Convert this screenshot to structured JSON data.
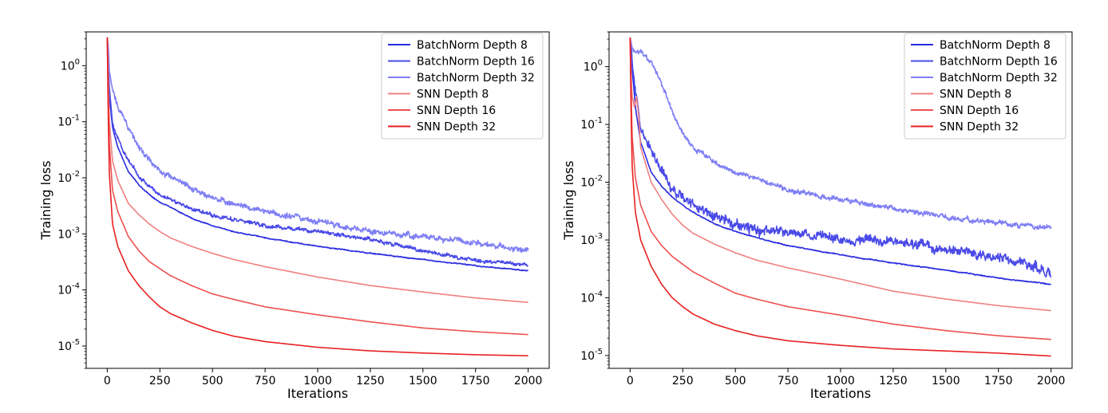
{
  "chart_data": [
    {
      "type": "line",
      "title": "",
      "xlabel": "Iterations",
      "ylabel": "Training loss",
      "yscale": "log",
      "xlim": [
        -100,
        2100
      ],
      "ylim": [
        4e-06,
        4
      ],
      "xticks": [
        0,
        250,
        500,
        750,
        1000,
        1250,
        1500,
        1750,
        2000
      ],
      "xtick_labels": [
        "0",
        "250",
        "500",
        "750",
        "1000",
        "1250",
        "1500",
        "1750",
        "2000"
      ],
      "yticks": [
        1e-05,
        0.0001,
        0.001,
        0.01,
        0.1,
        1
      ],
      "ytick_labels": [
        {
          "base": "10",
          "exp": "-5"
        },
        {
          "base": "10",
          "exp": "-4"
        },
        {
          "base": "10",
          "exp": "-3"
        },
        {
          "base": "10",
          "exp": "-2"
        },
        {
          "base": "10",
          "exp": "-1"
        },
        {
          "base": "10",
          "exp": "0"
        }
      ],
      "grid": false,
      "legend_position": "top-right",
      "series": [
        {
          "name": "BatchNorm Depth 8",
          "color": "#2a2ae0",
          "noise": 0.02,
          "x": [
            0,
            5,
            10,
            25,
            50,
            100,
            150,
            200,
            250,
            300,
            400,
            500,
            600,
            750,
            1000,
            1250,
            1500,
            1750,
            2000
          ],
          "y": [
            3.2,
            1.0,
            0.28,
            0.08,
            0.035,
            0.013,
            0.0075,
            0.005,
            0.0037,
            0.003,
            0.0019,
            0.0014,
            0.0011,
            0.00085,
            0.0006,
            0.00045,
            0.00035,
            0.00027,
            0.00022
          ]
        },
        {
          "name": "BatchNorm Depth 16",
          "color": "#4a4ae8",
          "noise": 0.08,
          "x": [
            0,
            5,
            10,
            25,
            50,
            100,
            150,
            200,
            250,
            300,
            400,
            500,
            600,
            750,
            1000,
            1250,
            1500,
            1750,
            2000
          ],
          "y": [
            3.2,
            1.2,
            0.4,
            0.1,
            0.05,
            0.02,
            0.011,
            0.007,
            0.005,
            0.0042,
            0.0028,
            0.0022,
            0.0018,
            0.0014,
            0.0011,
            0.0008,
            0.0005,
            0.00033,
            0.00028
          ]
        },
        {
          "name": "BatchNorm Depth 32",
          "color": "#7f7ff5",
          "noise": 0.12,
          "x": [
            0,
            5,
            10,
            25,
            50,
            100,
            150,
            200,
            250,
            300,
            400,
            500,
            600,
            750,
            1000,
            1250,
            1500,
            1750,
            2000
          ],
          "y": [
            3.2,
            2.2,
            0.8,
            0.35,
            0.2,
            0.08,
            0.035,
            0.02,
            0.013,
            0.01,
            0.0065,
            0.0045,
            0.0035,
            0.0025,
            0.0017,
            0.0011,
            0.0009,
            0.0007,
            0.0005
          ]
        },
        {
          "name": "SNN Depth 8",
          "color": "#f08080",
          "noise": 0,
          "x": [
            0,
            5,
            10,
            25,
            50,
            100,
            150,
            200,
            250,
            300,
            400,
            500,
            600,
            750,
            1000,
            1250,
            1500,
            1750,
            2000
          ],
          "y": [
            3.2,
            0.5,
            0.1,
            0.02,
            0.009,
            0.0035,
            0.0022,
            0.0015,
            0.0011,
            0.00085,
            0.0006,
            0.00045,
            0.00035,
            0.00026,
            0.00017,
            0.00012,
            9.2e-05,
            7.2e-05,
            6e-05
          ]
        },
        {
          "name": "SNN Depth 16",
          "color": "#ee5050",
          "noise": 0,
          "x": [
            0,
            5,
            10,
            25,
            50,
            100,
            150,
            200,
            250,
            300,
            400,
            500,
            600,
            750,
            1000,
            1250,
            1500,
            1750,
            2000
          ],
          "y": [
            3.2,
            0.25,
            0.04,
            0.006,
            0.0025,
            0.0009,
            0.0005,
            0.00032,
            0.00024,
            0.00018,
            0.00012,
            8.5e-05,
            6.8e-05,
            5e-05,
            3.6e-05,
            2.7e-05,
            2.1e-05,
            1.8e-05,
            1.6e-05
          ]
        },
        {
          "name": "SNN Depth 32",
          "color": "#e82020",
          "noise": 0,
          "x": [
            0,
            5,
            10,
            25,
            50,
            100,
            150,
            200,
            250,
            300,
            400,
            500,
            600,
            750,
            1000,
            1250,
            1500,
            1750,
            2000
          ],
          "y": [
            3.2,
            0.1,
            0.012,
            0.0015,
            0.0006,
            0.00022,
            0.00012,
            7.5e-05,
            5e-05,
            3.8e-05,
            2.6e-05,
            1.9e-05,
            1.5e-05,
            1.2e-05,
            9.5e-06,
            8.2e-06,
            7.5e-06,
            7e-06,
            6.7e-06
          ]
        }
      ]
    },
    {
      "type": "line",
      "title": "",
      "xlabel": "Iterations",
      "ylabel": "Training loss",
      "yscale": "log",
      "xlim": [
        -100,
        2100
      ],
      "ylim": [
        6e-06,
        4
      ],
      "xticks": [
        0,
        250,
        500,
        750,
        1000,
        1250,
        1500,
        1750,
        2000
      ],
      "xtick_labels": [
        "0",
        "250",
        "500",
        "750",
        "1000",
        "1250",
        "1500",
        "1750",
        "2000"
      ],
      "yticks": [
        1e-05,
        0.0001,
        0.001,
        0.01,
        0.1,
        1
      ],
      "ytick_labels": [
        {
          "base": "10",
          "exp": "-5"
        },
        {
          "base": "10",
          "exp": "-4"
        },
        {
          "base": "10",
          "exp": "-3"
        },
        {
          "base": "10",
          "exp": "-2"
        },
        {
          "base": "10",
          "exp": "-1"
        },
        {
          "base": "10",
          "exp": "0"
        }
      ],
      "grid": false,
      "legend_position": "top-right",
      "series": [
        {
          "name": "BatchNorm Depth 8",
          "color": "#2a2ae0",
          "noise": 0.02,
          "x": [
            0,
            5,
            10,
            25,
            50,
            100,
            150,
            200,
            250,
            300,
            400,
            500,
            600,
            750,
            1000,
            1250,
            1500,
            1750,
            2000
          ],
          "y": [
            3.2,
            2.0,
            0.9,
            0.2,
            0.05,
            0.015,
            0.0085,
            0.0055,
            0.004,
            0.003,
            0.0019,
            0.0014,
            0.0011,
            0.0008,
            0.00055,
            0.0004,
            0.0003,
            0.00022,
            0.00017
          ]
        },
        {
          "name": "BatchNorm Depth 16",
          "color": "#4a4ae8",
          "noise": 0.2,
          "x": [
            0,
            5,
            10,
            25,
            50,
            100,
            150,
            200,
            250,
            300,
            400,
            500,
            600,
            750,
            1000,
            1250,
            1500,
            1750,
            2000
          ],
          "y": [
            3.2,
            2.5,
            1.2,
            0.35,
            0.1,
            0.04,
            0.016,
            0.008,
            0.0055,
            0.004,
            0.0025,
            0.0018,
            0.0015,
            0.0013,
            0.0011,
            0.0009,
            0.0007,
            0.0005,
            0.00028
          ]
        },
        {
          "name": "BatchNorm Depth 32",
          "color": "#7f7ff5",
          "noise": 0.1,
          "x": [
            0,
            5,
            10,
            25,
            50,
            100,
            150,
            200,
            250,
            300,
            400,
            500,
            600,
            750,
            1000,
            1250,
            1500,
            1750,
            2000
          ],
          "y": [
            3.2,
            2.6,
            2.1,
            1.9,
            1.8,
            1.2,
            0.5,
            0.16,
            0.07,
            0.04,
            0.022,
            0.015,
            0.011,
            0.0075,
            0.005,
            0.0035,
            0.0025,
            0.002,
            0.0016
          ]
        },
        {
          "name": "SNN Depth 8",
          "color": "#f08080",
          "noise": 0,
          "x": [
            0,
            5,
            10,
            20,
            30,
            40,
            50,
            75,
            100,
            150,
            200,
            250,
            300,
            400,
            500,
            600,
            750,
            1000,
            1250,
            1500,
            1750,
            2000
          ],
          "y": [
            3.2,
            0.6,
            0.3,
            0.2,
            0.3,
            0.15,
            0.04,
            0.02,
            0.01,
            0.005,
            0.0028,
            0.0018,
            0.0013,
            0.00085,
            0.0006,
            0.00045,
            0.00033,
            0.00021,
            0.00013,
            9.5e-05,
            7.3e-05,
            6e-05
          ]
        },
        {
          "name": "SNN Depth 16",
          "color": "#ee5050",
          "noise": 0,
          "x": [
            0,
            5,
            10,
            25,
            50,
            100,
            150,
            200,
            250,
            300,
            400,
            500,
            600,
            750,
            1000,
            1250,
            1500,
            1750,
            2000
          ],
          "y": [
            3.2,
            0.3,
            0.06,
            0.012,
            0.004,
            0.0014,
            0.0008,
            0.00052,
            0.00038,
            0.00028,
            0.00018,
            0.00012,
            9.5e-05,
            7e-05,
            5e-05,
            3.5e-05,
            2.7e-05,
            2.2e-05,
            1.9e-05
          ]
        },
        {
          "name": "SNN Depth 32",
          "color": "#e82020",
          "noise": 0,
          "x": [
            0,
            5,
            10,
            25,
            50,
            100,
            150,
            200,
            250,
            300,
            400,
            500,
            600,
            750,
            1000,
            1250,
            1500,
            1750,
            2000
          ],
          "y": [
            3.2,
            0.12,
            0.018,
            0.003,
            0.001,
            0.00035,
            0.00017,
            0.0001,
            7e-05,
            5.2e-05,
            3.5e-05,
            2.7e-05,
            2.2e-05,
            1.8e-05,
            1.5e-05,
            1.3e-05,
            1.2e-05,
            1.1e-05,
            9.8e-06
          ]
        }
      ]
    }
  ]
}
